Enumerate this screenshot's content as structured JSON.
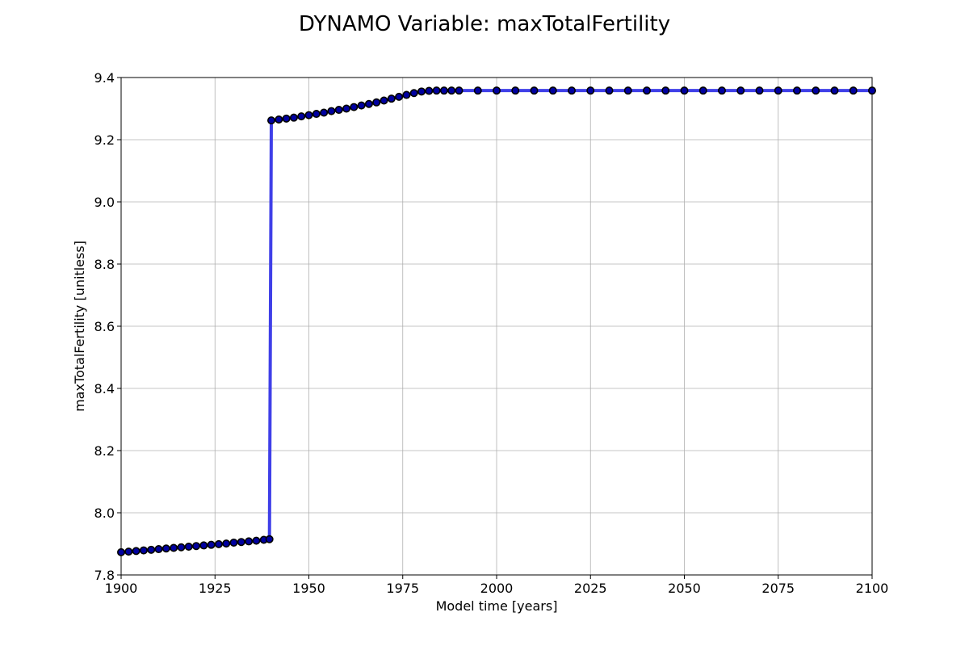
{
  "chart_data": {
    "type": "line",
    "title": "DYNAMO Variable: maxTotalFertility",
    "xlabel": "Model time [years]",
    "ylabel": "maxTotalFertility [unitless]",
    "xlim": [
      1900,
      2100
    ],
    "ylim": [
      7.8,
      9.4
    ],
    "xticks": [
      1900,
      1925,
      1950,
      1975,
      2000,
      2025,
      2050,
      2075,
      2100
    ],
    "yticks": [
      7.8,
      8.0,
      8.2,
      8.4,
      8.6,
      8.8,
      9.0,
      9.2,
      9.4
    ],
    "ytick_labels": [
      "7.8",
      "8.0",
      "8.2",
      "8.4",
      "8.6",
      "8.8",
      "9.0",
      "9.2",
      "9.4"
    ],
    "grid": true,
    "line_color": "#3f3fe8",
    "marker_color": "#0000a0",
    "marker_edge_color": "#000000",
    "series": [
      {
        "x": [
          1900,
          1902,
          1904,
          1906,
          1908,
          1910,
          1912,
          1914,
          1916,
          1918,
          1920,
          1922,
          1924,
          1926,
          1928,
          1930,
          1932,
          1934,
          1936,
          1938,
          1939.5,
          1940,
          1942,
          1944,
          1946,
          1948,
          1950,
          1952,
          1954,
          1956,
          1958,
          1960,
          1962,
          1964,
          1966,
          1968,
          1970,
          1972,
          1974,
          1976,
          1978,
          1980,
          1982,
          1984,
          1986,
          1988,
          1990,
          1995,
          2000,
          2005,
          2010,
          2015,
          2020,
          2025,
          2030,
          2035,
          2040,
          2045,
          2050,
          2055,
          2060,
          2065,
          2070,
          2075,
          2080,
          2085,
          2090,
          2095,
          2100
        ],
        "y": [
          7.873,
          7.875,
          7.877,
          7.879,
          7.881,
          7.883,
          7.885,
          7.887,
          7.889,
          7.891,
          7.893,
          7.895,
          7.897,
          7.899,
          7.901,
          7.904,
          7.906,
          7.908,
          7.91,
          7.913,
          7.915,
          9.262,
          9.265,
          9.268,
          9.271,
          9.275,
          9.279,
          9.283,
          9.287,
          9.292,
          9.296,
          9.3,
          9.305,
          9.31,
          9.315,
          9.32,
          9.326,
          9.332,
          9.338,
          9.344,
          9.35,
          9.355,
          9.357,
          9.358,
          9.358,
          9.358,
          9.358,
          9.358,
          9.358,
          9.358,
          9.358,
          9.358,
          9.358,
          9.358,
          9.358,
          9.358,
          9.358,
          9.358,
          9.358,
          9.358,
          9.358,
          9.358,
          9.358,
          9.358,
          9.358,
          9.358,
          9.358,
          9.358,
          9.358
        ]
      }
    ]
  }
}
